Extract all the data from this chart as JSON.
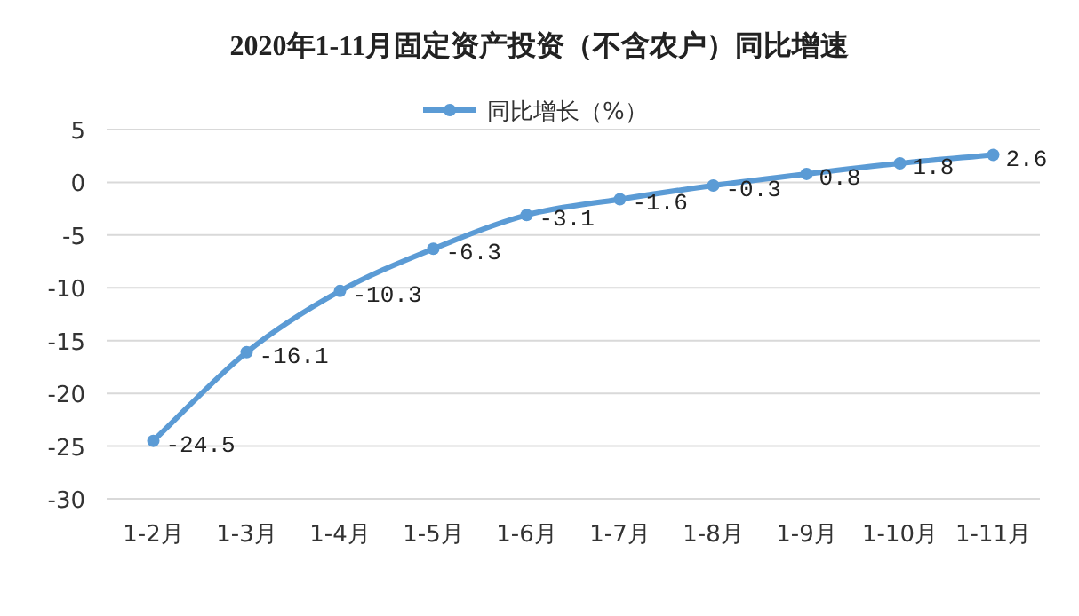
{
  "chart_data": {
    "type": "line",
    "title": "2020年1-11月固定资产投资（不含农户）同比增速",
    "categories": [
      "1-2月",
      "1-3月",
      "1-4月",
      "1-5月",
      "1-6月",
      "1-7月",
      "1-8月",
      "1-9月",
      "1-10月",
      "1-11月"
    ],
    "series": [
      {
        "name": "同比增长（%）",
        "color": "#5b9bd5",
        "values": [
          -24.5,
          -16.1,
          -10.3,
          -6.3,
          -3.1,
          -1.6,
          -0.3,
          0.8,
          1.8,
          2.6
        ]
      }
    ],
    "ylim": [
      -30,
      5
    ],
    "yticks": [
      -30,
      -25,
      -20,
      -15,
      -10,
      -5,
      0,
      5
    ],
    "grid": "y",
    "legend": "top",
    "marker": "circle",
    "data_labels": true
  }
}
